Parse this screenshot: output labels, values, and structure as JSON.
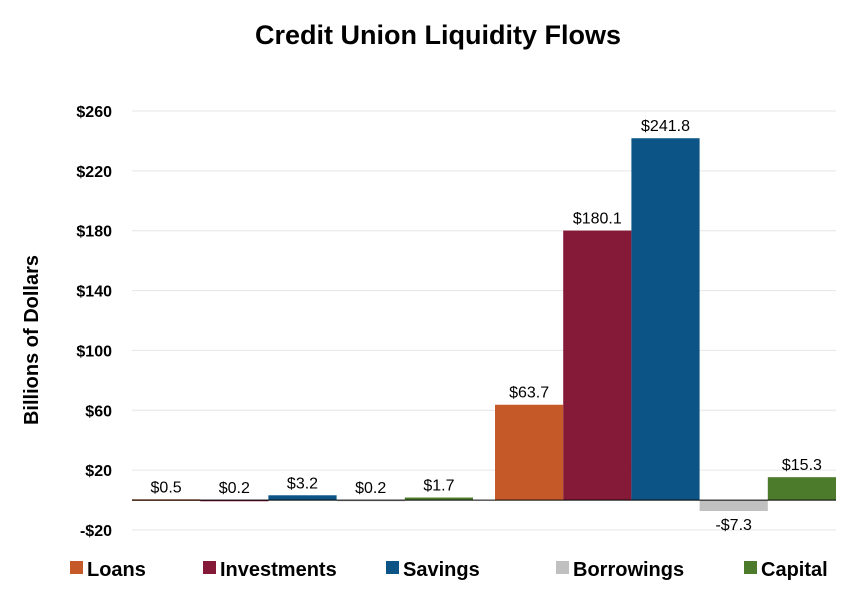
{
  "chart_data": {
    "type": "bar",
    "title": "Credit Union Liquidity Flows",
    "ylabel": "Billions of Dollars",
    "xlabel": "",
    "ylim": [
      -20,
      260
    ],
    "yticks": [
      -20,
      20,
      60,
      100,
      140,
      180,
      220,
      260
    ],
    "ytick_labels": [
      "-$20",
      "$20",
      "$60",
      "$100",
      "$140",
      "$180",
      "$220",
      "$260"
    ],
    "grid": true,
    "legend_position": "bottom",
    "groups": 2,
    "series": [
      {
        "name": "Loans",
        "color": "#c55a28",
        "values": [
          0.5,
          63.7
        ],
        "labels": [
          "$0.5",
          "$63.7"
        ]
      },
      {
        "name": "Investments",
        "color": "#841a38",
        "values": [
          0.2,
          180.1
        ],
        "labels": [
          "$0.2",
          "$180.1"
        ]
      },
      {
        "name": "Savings",
        "color": "#0c5485",
        "values": [
          3.2,
          241.8
        ],
        "labels": [
          "$3.2",
          "$241.8"
        ]
      },
      {
        "name": "Borrowings",
        "color": "#c0c0c0",
        "values": [
          0.2,
          -7.3
        ],
        "labels": [
          "$0.2",
          "-$7.3"
        ]
      },
      {
        "name": "Capital",
        "color": "#4c7b2c",
        "values": [
          1.7,
          15.3
        ],
        "labels": [
          "$1.7",
          "$15.3"
        ]
      }
    ]
  }
}
